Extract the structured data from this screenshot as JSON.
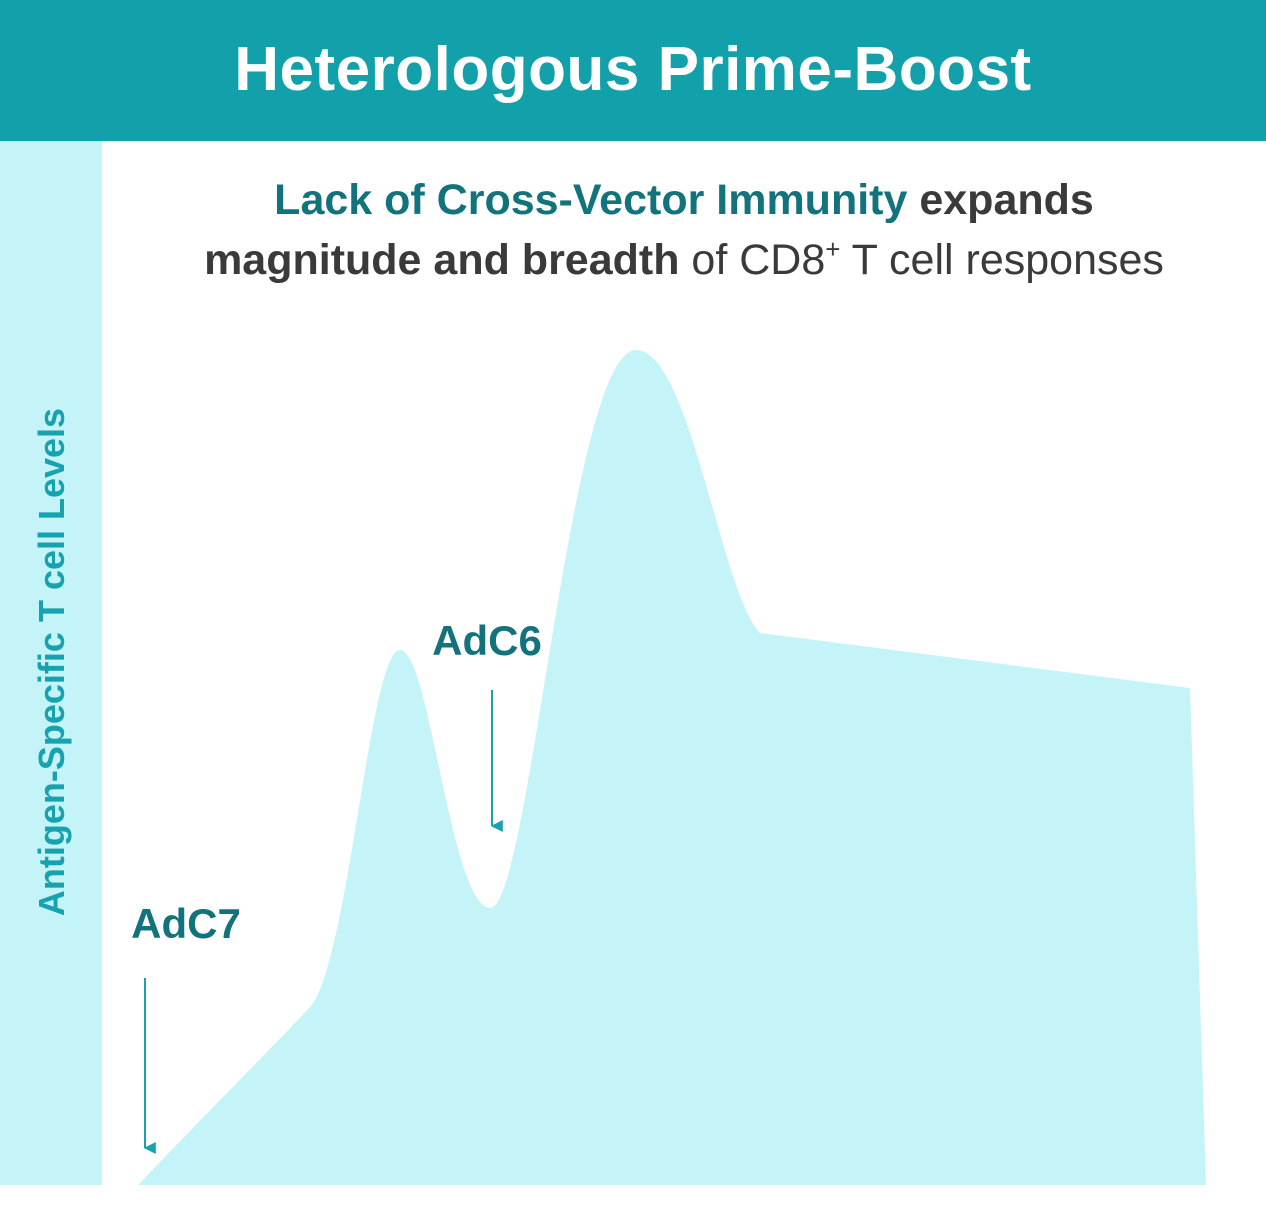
{
  "header": {
    "title": "Heterologous Prime-Boost"
  },
  "subtitle": {
    "part1": "Lack of Cross-Vector Immunity",
    "part2": " expands",
    "part3": "magnitude and breadth",
    "part4": " of CD8",
    "part4_sup": "+",
    "part5": " T cell responses"
  },
  "y_axis": {
    "label": "Antigen-Specific T cell Levels"
  },
  "markers": [
    {
      "label": "AdC7"
    },
    {
      "label": "AdC6"
    }
  ],
  "colors": {
    "header_bg": "#12a0ab",
    "side_band": "#c4f4f7",
    "curve_fill": "#c4f4f7",
    "marker_label": "#13737c",
    "arrow": "#17a2b0"
  }
}
